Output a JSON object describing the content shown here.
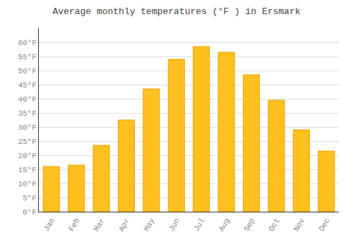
{
  "chart_data": {
    "type": "bar",
    "title": "Average monthly temperatures (°F ) in Ersmark",
    "categories": [
      "Jan",
      "Feb",
      "Mar",
      "Apr",
      "May",
      "Jun",
      "Jul",
      "Aug",
      "Sep",
      "Oct",
      "Nov",
      "Dec"
    ],
    "values": [
      16.0,
      16.5,
      23.5,
      32.5,
      43.5,
      54.0,
      58.5,
      56.5,
      48.5,
      39.5,
      29.0,
      21.5
    ],
    "color": "#FFC020",
    "ylim": [
      0,
      65
    ],
    "yticks": [
      {
        "value": 0,
        "label": "0°F"
      },
      {
        "value": 5,
        "label": "5°F"
      },
      {
        "value": 10,
        "label": "10°F"
      },
      {
        "value": 15,
        "label": "15°F"
      },
      {
        "value": 20,
        "label": "20°F"
      },
      {
        "value": 25,
        "label": "25°F"
      },
      {
        "value": 30,
        "label": "30°F"
      },
      {
        "value": 35,
        "label": "35°F"
      },
      {
        "value": 40,
        "label": "40°F"
      },
      {
        "value": 45,
        "label": "45°F"
      },
      {
        "value": 50,
        "label": "50°F"
      },
      {
        "value": 55,
        "label": "55°F"
      },
      {
        "value": 60,
        "label": "60°F"
      }
    ],
    "grid": true
  }
}
